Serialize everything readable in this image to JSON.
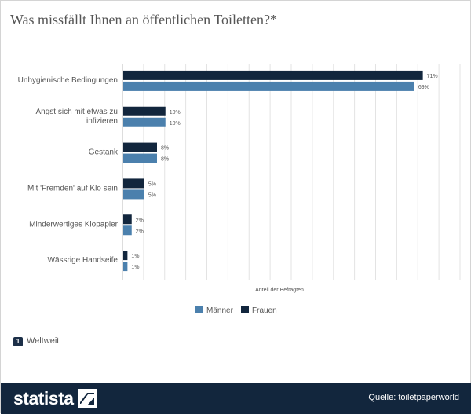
{
  "title": "Was missfällt Ihnen an öffentlichen Toiletten?*",
  "info_badge": "1",
  "info_text": "Weltweit",
  "logo_text": "statista",
  "source": "Quelle: toiletpaperworld",
  "colors": {
    "maenner": "#4b80ad",
    "frauen": "#12263d",
    "grid": "#e3e3e3"
  },
  "chart_data": {
    "type": "bar",
    "orientation": "horizontal",
    "categories": [
      [
        "Unhygienische Bedingungen"
      ],
      [
        "Angst sich mit etwas zu",
        "infizieren"
      ],
      [
        "Gestank"
      ],
      [
        "Mit 'Fremden' auf Klo sein"
      ],
      [
        "Minderwertiges Klopapier"
      ],
      [
        "Wässrige Handseife"
      ]
    ],
    "series": [
      {
        "name": "Frauen",
        "values": [
          71,
          10,
          8,
          5,
          2,
          1
        ]
      },
      {
        "name": "Männer",
        "values": [
          69,
          10,
          8,
          5,
          2,
          1
        ]
      }
    ],
    "value_suffix": "%",
    "xlabel": "Anteil der Befragten",
    "xlim": [
      0,
      80
    ],
    "grid": true,
    "legend_position": "bottom-center",
    "legend_order": [
      "Männer",
      "Frauen"
    ]
  }
}
